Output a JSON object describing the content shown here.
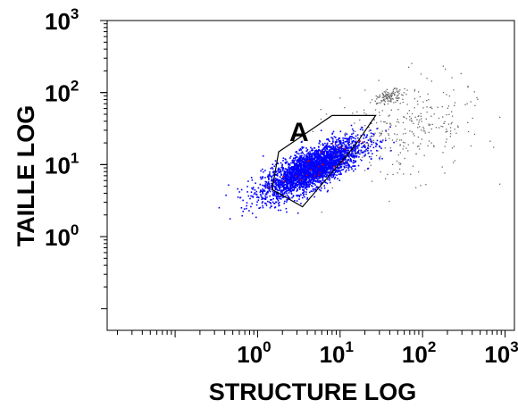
{
  "chart_data": {
    "type": "scatter",
    "title": "",
    "xlabel": "STRUCTURE LOG",
    "ylabel": "TAILLE LOG",
    "x_scale": "log",
    "y_scale": "log",
    "xlim": [
      0.015,
      1300
    ],
    "ylim": [
      0.05,
      1000
    ],
    "x_ticks": [
      {
        "value": 1,
        "label": "10",
        "exp": "0"
      },
      {
        "value": 10,
        "label": "10",
        "exp": "1"
      },
      {
        "value": 100,
        "label": "10",
        "exp": "2"
      },
      {
        "value": 1000,
        "label": "10",
        "exp": "3"
      }
    ],
    "y_ticks": [
      {
        "value": 1,
        "label": "10",
        "exp": "0"
      },
      {
        "value": 10,
        "label": "10",
        "exp": "1"
      },
      {
        "value": 100,
        "label": "10",
        "exp": "2"
      },
      {
        "value": 1000,
        "label": "10",
        "exp": "3"
      }
    ],
    "grid": false,
    "gate": {
      "label": "A",
      "polygon": [
        [
          1.5,
          4.5
        ],
        [
          1.8,
          15
        ],
        [
          8,
          48
        ],
        [
          27,
          48
        ],
        [
          15,
          18
        ],
        [
          3.5,
          2.6
        ]
      ]
    },
    "series": [
      {
        "color": "#0000ff",
        "region": "inside gate A",
        "center": [
          4.5,
          9
        ],
        "spread_log": [
          0.3,
          0.2
        ],
        "correlation": 0.75
      },
      {
        "color": "#cc0000",
        "region": "inside gate A (sparse)",
        "center": [
          5,
          9
        ],
        "spread_log": [
          0.25,
          0.18
        ],
        "correlation": 0.75
      },
      {
        "color": "#666666",
        "region": "outside gate A",
        "center": [
          60,
          30
        ],
        "spread_log": [
          0.45,
          0.35
        ],
        "correlation": 0.3
      },
      {
        "color": "#666666",
        "region": "dense cluster",
        "center": [
          40,
          90
        ],
        "spread_log": [
          0.08,
          0.05
        ],
        "correlation": 0.5
      }
    ]
  }
}
